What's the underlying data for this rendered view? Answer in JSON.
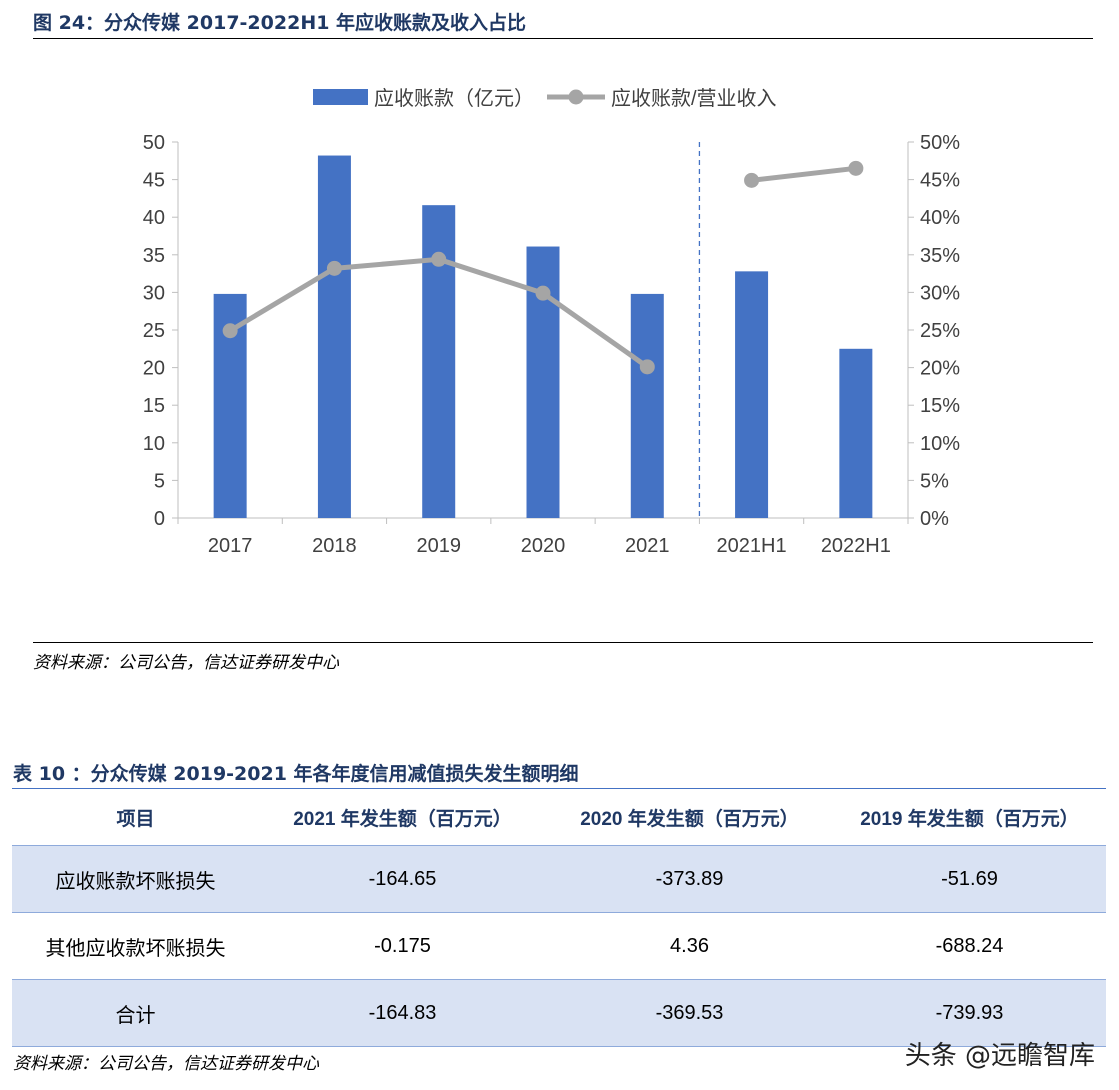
{
  "figure": {
    "title": "图 24：分众传媒 2017-2022H1 年应收账款及收入占比",
    "source": "资料来源：公司公告，信达证券研发中心"
  },
  "chart_data": {
    "type": "bar",
    "categories": [
      "2017",
      "2018",
      "2019",
      "2020",
      "2021",
      "2021H1",
      "2022H1"
    ],
    "series": [
      {
        "name": "应收账款（亿元）",
        "type": "bar",
        "axis": "left",
        "color": "#4472c4",
        "values": [
          29.8,
          48.2,
          41.6,
          36.1,
          29.8,
          32.8,
          22.5
        ]
      },
      {
        "name": "应收账款/营业收入",
        "type": "line",
        "axis": "right",
        "color": "#a5a5a5",
        "values": [
          0.249,
          0.332,
          0.344,
          0.299,
          0.201,
          0.449,
          0.465
        ]
      }
    ],
    "line_segments": [
      [
        0,
        4
      ],
      [
        5,
        6
      ]
    ],
    "divider_after_category": "2021",
    "y_left": {
      "min": 0,
      "max": 50,
      "step": 5,
      "ticks": [
        "0",
        "5",
        "10",
        "15",
        "20",
        "25",
        "30",
        "35",
        "40",
        "45",
        "50"
      ]
    },
    "y_right": {
      "min": 0,
      "max": 0.5,
      "step": 0.05,
      "ticks": [
        "0%",
        "5%",
        "10%",
        "15%",
        "20%",
        "25%",
        "30%",
        "35%",
        "40%",
        "45%",
        "50%"
      ]
    },
    "legend_position": "top-center",
    "grid": false
  },
  "table": {
    "title": "表 10 ：分众传媒 2019-2021 年各年度信用减值损失发生额明细",
    "headers": [
      "项目",
      "2021 年发生额（百万元）",
      "2020 年发生额（百万元）",
      "2019 年发生额（百万元）"
    ],
    "rows": [
      [
        "应收账款坏账损失",
        "-164.65",
        "-373.89",
        "-51.69"
      ],
      [
        "其他应收款坏账损失",
        "-0.175",
        "4.36",
        "-688.24"
      ],
      [
        "合计",
        "-164.83",
        "-369.53",
        "-739.93"
      ]
    ],
    "source": "资料来源：公司公告，信达证券研发中心"
  },
  "watermark": "头条 @远瞻智库"
}
